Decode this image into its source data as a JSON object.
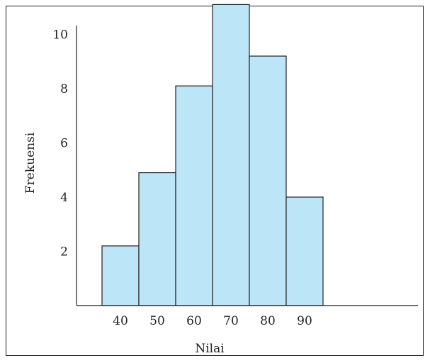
{
  "chart_data": {
    "type": "bar",
    "title": "",
    "xlabel": "Nilai",
    "ylabel": "Frekuensi",
    "categories": [
      "40",
      "50",
      "60",
      "70",
      "80",
      "90"
    ],
    "values": [
      2.2,
      4.9,
      8.1,
      11.1,
      9.2,
      4.0
    ],
    "yticks": [
      "2",
      "4",
      "6",
      "8",
      "10"
    ],
    "ylim": [
      0,
      12
    ],
    "grid": false,
    "legend": "none",
    "bar_color": "#bde5f8",
    "edge_color": "#231f20"
  }
}
